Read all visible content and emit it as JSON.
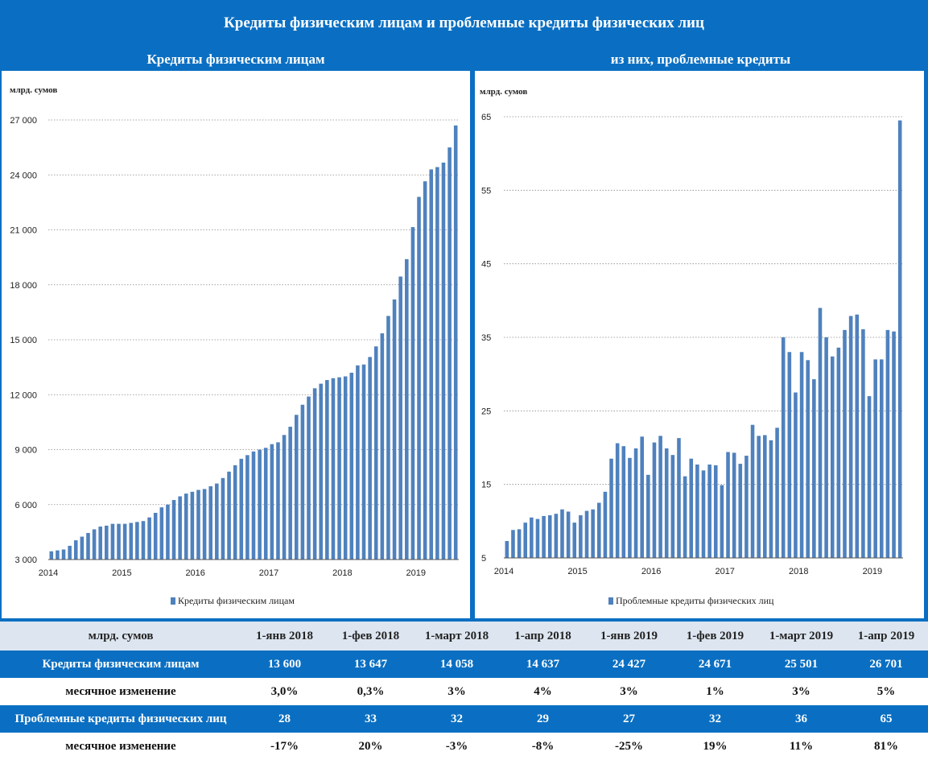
{
  "title": "Кредиты физическим лицам и проблемные кредиты физических лиц",
  "chart_data": [
    {
      "type": "bar",
      "subtitle": "Кредиты физическим лицам",
      "unit_label": "млрд. сумов",
      "legend": "Кредиты физическим лицам",
      "series_name": "Кредиты физическим лицам",
      "color": "#4f81bd",
      "ylim": [
        3000,
        27000
      ],
      "yticks": [
        3000,
        6000,
        9000,
        12000,
        15000,
        18000,
        21000,
        24000,
        27000
      ],
      "ytick_labels": [
        "3 000",
        "6 000",
        "9 000",
        "12 000",
        "15 000",
        "18 000",
        "21 000",
        "24 000",
        "27 000"
      ],
      "xtick_labels": [
        "2014",
        "2015",
        "2016",
        "2017",
        "2018",
        "2019"
      ],
      "xtick_index": [
        0,
        12,
        24,
        36,
        48,
        60
      ],
      "grid": "horizontal-dotted",
      "values": [
        3450,
        3500,
        3550,
        3750,
        4050,
        4250,
        4450,
        4650,
        4800,
        4850,
        4950,
        4950,
        4950,
        5000,
        5050,
        5100,
        5300,
        5550,
        5850,
        6000,
        6250,
        6450,
        6600,
        6700,
        6800,
        6850,
        7000,
        7150,
        7450,
        7800,
        8150,
        8500,
        8700,
        8900,
        9000,
        9100,
        9300,
        9400,
        9800,
        10250,
        10900,
        11450,
        11900,
        12350,
        12600,
        12800,
        12900,
        12950,
        13000,
        13200,
        13600,
        13647,
        14058,
        14637,
        15350,
        16300,
        17200,
        18450,
        19400,
        21150,
        22800,
        23650,
        24300,
        24427,
        24671,
        25501,
        26701
      ]
    },
    {
      "type": "bar",
      "subtitle": "из них, проблемные кредиты",
      "unit_label": "млрд. сумов",
      "legend": "Проблемные кредиты физических лиц",
      "series_name": "Проблемные кредиты физических лиц",
      "color": "#4f81bd",
      "ylim": [
        5,
        65
      ],
      "yticks": [
        5,
        15,
        25,
        35,
        45,
        55,
        65
      ],
      "ytick_labels": [
        "5",
        "15",
        "25",
        "35",
        "45",
        "55",
        "65"
      ],
      "xtick_labels": [
        "2014",
        "2015",
        "2016",
        "2017",
        "2018",
        "2019"
      ],
      "xtick_index": [
        0,
        12,
        24,
        36,
        48,
        60
      ],
      "grid": "horizontal-dotted",
      "values": [
        7.3,
        8.8,
        8.9,
        9.8,
        10.5,
        10.3,
        10.7,
        10.8,
        11,
        11.6,
        11.3,
        9.8,
        10.8,
        11.4,
        11.6,
        12.5,
        14,
        18.5,
        20.6,
        20.2,
        18.6,
        19.9,
        21.5,
        16.3,
        20.7,
        21.6,
        19.9,
        19,
        21.3,
        16.1,
        18.5,
        17.7,
        16.9,
        17.7,
        17.6,
        14.9,
        19.4,
        19.3,
        17.8,
        18.9,
        23.1,
        21.6,
        21.7,
        21,
        22.7,
        35,
        33,
        27.5,
        33,
        31.9,
        29.3,
        39,
        35,
        32.4,
        33.6,
        36,
        37.9,
        38.1,
        36.1,
        27,
        32,
        32,
        36,
        35.8,
        64.5
      ]
    }
  ],
  "table": {
    "header_unit": "млрд. сумов",
    "columns": [
      "1-янв 2018",
      "1-фев 2018",
      "1-март 2018",
      "1-апр 2018",
      "1-янв 2019",
      "1-фев 2019",
      "1-март 2019",
      "1-апр 2019"
    ],
    "rows": [
      {
        "label": "Кредиты физическим лицам",
        "style": "blue",
        "cells": [
          "13 600",
          "13 647",
          "14 058",
          "14 637",
          "24 427",
          "24 671",
          "25 501",
          "26 701"
        ]
      },
      {
        "label": "месячное изменение",
        "style": "white",
        "cells": [
          "3,0%",
          "0,3%",
          "3%",
          "4%",
          "3%",
          "1%",
          "3%",
          "5%"
        ]
      },
      {
        "label": "Проблемные кредиты физических лиц",
        "style": "blue",
        "cells": [
          "28",
          "33",
          "32",
          "29",
          "27",
          "32",
          "36",
          "65"
        ]
      },
      {
        "label": "месячное изменение",
        "style": "white",
        "cells": [
          "-17%",
          "20%",
          "-3%",
          "-8%",
          "-25%",
          "19%",
          "11%",
          "81%"
        ]
      }
    ]
  }
}
